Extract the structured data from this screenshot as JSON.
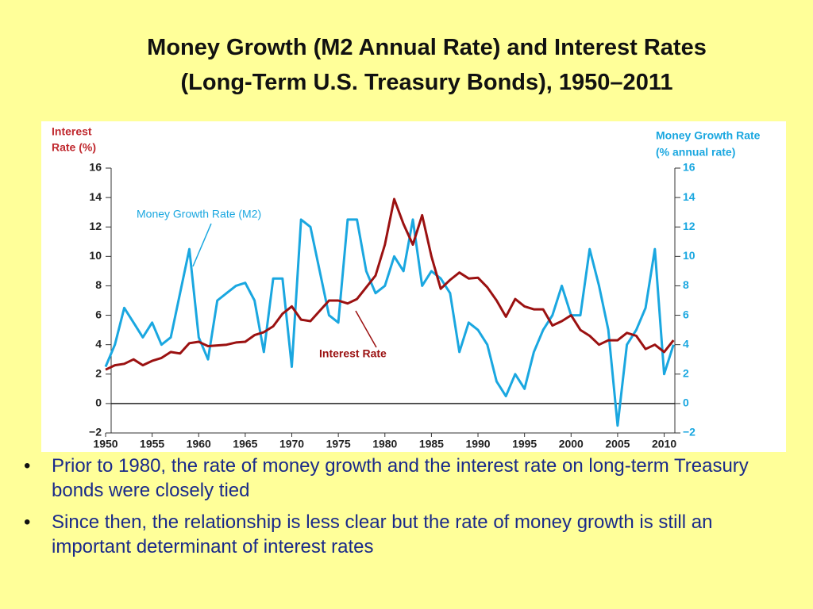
{
  "slide": {
    "title_lines": [
      "Money Growth (M2 Annual Rate) and Interest Rates",
      "(Long-Term U.S. Treasury Bonds), 1950–2011"
    ],
    "bullets": [
      "Prior to 1980, the rate of money growth and the interest rate on long-term Treasury bonds were closely tied",
      "Since then, the relationship is less clear but the rate of money growth is still an important determinant of interest rates"
    ]
  },
  "chart_data": {
    "type": "line",
    "y_label": [
      "Interest",
      "Rate (%)"
    ],
    "y2_label": [
      "Money Growth Rate",
      "(% annual rate)"
    ],
    "x": [
      1950,
      1951,
      1952,
      1953,
      1954,
      1955,
      1956,
      1957,
      1958,
      1959,
      1960,
      1961,
      1962,
      1963,
      1964,
      1965,
      1966,
      1967,
      1968,
      1969,
      1970,
      1971,
      1972,
      1973,
      1974,
      1975,
      1976,
      1977,
      1978,
      1979,
      1980,
      1981,
      1982,
      1983,
      1984,
      1985,
      1986,
      1987,
      1988,
      1989,
      1990,
      1991,
      1992,
      1993,
      1994,
      1995,
      1996,
      1997,
      1998,
      1999,
      2000,
      2001,
      2002,
      2003,
      2004,
      2005,
      2006,
      2007,
      2008,
      2009,
      2010,
      2011
    ],
    "xlim": [
      1950,
      2012
    ],
    "xticks": [
      1950,
      1955,
      1960,
      1965,
      1970,
      1975,
      1980,
      1985,
      1990,
      1995,
      2000,
      2005,
      2010
    ],
    "ylim": [
      -2,
      16
    ],
    "yticks": [
      {
        "value": -2,
        "label": "−2"
      },
      0,
      2,
      4,
      6,
      8,
      10,
      12,
      14,
      16
    ],
    "y2lim": [
      -2,
      16
    ],
    "y2ticks": [
      {
        "value": -2,
        "label": "−2"
      },
      0,
      2,
      4,
      6,
      8,
      10,
      12,
      14,
      16
    ],
    "series": [
      {
        "name": "Money Growth Rate (M2)",
        "color": "#1aa7e0",
        "axis": "y2",
        "values": [
          2.5,
          4.0,
          6.5,
          5.5,
          4.5,
          5.5,
          4.0,
          4.5,
          7.5,
          10.5,
          4.5,
          3.0,
          7.0,
          7.5,
          8.0,
          8.2,
          7.0,
          3.5,
          8.5,
          8.5,
          2.5,
          12.5,
          12.0,
          9.0,
          6.0,
          5.5,
          12.5,
          12.5,
          9.0,
          7.5,
          8.0,
          10.0,
          9.0,
          12.5,
          8.0,
          9.0,
          8.5,
          7.5,
          3.5,
          5.5,
          5.0,
          4.0,
          1.5,
          0.5,
          2.0,
          1.0,
          3.5,
          5.0,
          6.0,
          8.0,
          6.0,
          6.0,
          10.5,
          8.0,
          5.0,
          -1.5,
          4.0,
          5.0,
          6.5,
          10.5,
          2.0,
          4.0
        ]
      },
      {
        "name": "Interest Rate",
        "color": "#9b1111",
        "values": [
          2.3,
          2.6,
          2.7,
          3.0,
          2.6,
          2.9,
          3.1,
          3.5,
          3.4,
          4.1,
          4.2,
          3.9,
          3.95,
          4.0,
          4.15,
          4.2,
          4.65,
          4.85,
          5.25,
          6.1,
          6.6,
          5.7,
          5.6,
          6.3,
          7.0,
          7.0,
          6.8,
          7.1,
          7.9,
          8.7,
          10.8,
          13.9,
          12.2,
          10.8,
          12.8,
          10.0,
          7.8,
          8.4,
          8.9,
          8.5,
          8.55,
          7.9,
          7.0,
          5.9,
          7.1,
          6.6,
          6.4,
          6.4,
          5.3,
          5.6,
          6.0,
          5.0,
          4.6,
          4.0,
          4.3,
          4.3,
          4.8,
          4.6,
          3.7,
          4.0,
          3.5,
          4.3
        ]
      }
    ]
  }
}
